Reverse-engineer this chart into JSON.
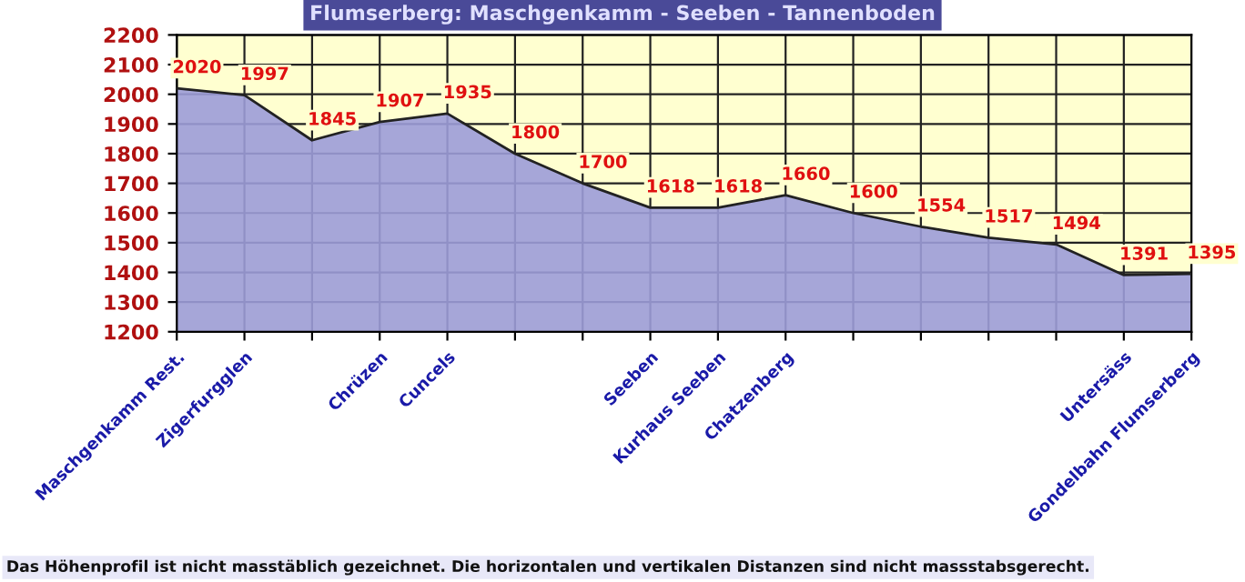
{
  "chart_data": {
    "type": "area",
    "title": "Flumserberg: Maschgenkamm - Seeben - Tannenboden",
    "categories": [
      "Maschgenkamm Rest.",
      "Zigerfurgglen",
      null,
      "Chrüzen",
      "Cuncels",
      null,
      null,
      "Seeben",
      "Kurhaus Seeben",
      "Chatzenberg",
      null,
      null,
      null,
      null,
      "Untersäss",
      "Gondelbahn Flumserberg"
    ],
    "series": [
      {
        "color": "#9c9cd8",
        "values": [
          2020,
          1997,
          1845,
          1907,
          1935,
          1800,
          1700,
          1618,
          1618,
          1660,
          1600,
          1554,
          1517,
          1494,
          1391,
          1395
        ]
      }
    ],
    "ylim": [
      1200,
      2200
    ],
    "yticks": [
      1200,
      1300,
      1400,
      1500,
      1600,
      1700,
      1800,
      1900,
      2000,
      2100,
      2200
    ],
    "grid": true,
    "data_labels": true,
    "annotations": [
      "Das Höhenprofil ist nicht masstäblich gezeichnet. Die horizontalen und vertikalen Distanzen sind nicht massstabsgerecht."
    ]
  }
}
